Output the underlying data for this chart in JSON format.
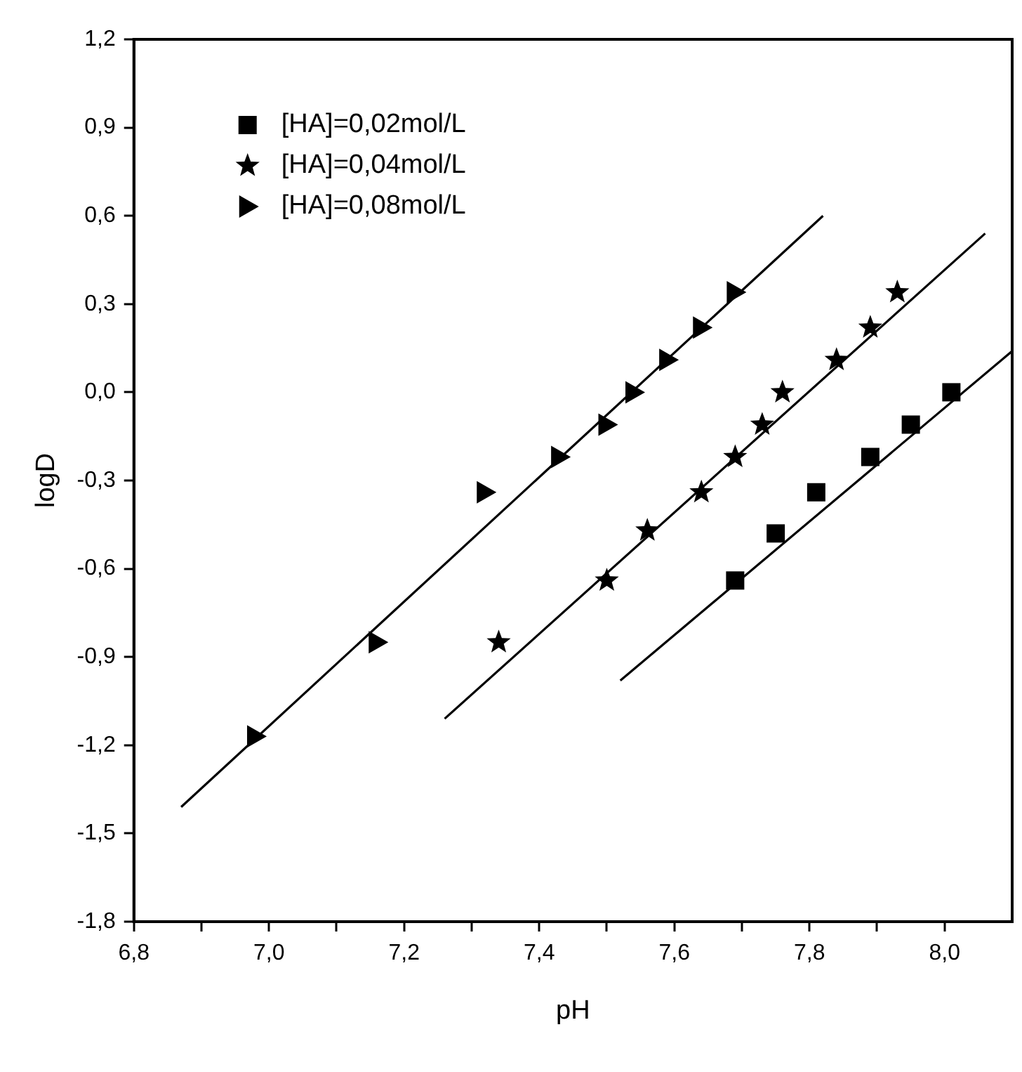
{
  "chart_data": {
    "type": "scatter",
    "xlabel": "pH",
    "ylabel": "logD",
    "xlim": [
      6.8,
      8.1
    ],
    "ylim": [
      -1.8,
      1.2
    ],
    "xticks": [
      {
        "value": 6.8,
        "label": "6,8"
      },
      {
        "value": 6.9,
        "label": null
      },
      {
        "value": 7.0,
        "label": "7,0"
      },
      {
        "value": 7.1,
        "label": null
      },
      {
        "value": 7.2,
        "label": "7,2"
      },
      {
        "value": 7.3,
        "label": null
      },
      {
        "value": 7.4,
        "label": "7,4"
      },
      {
        "value": 7.5,
        "label": null
      },
      {
        "value": 7.6,
        "label": "7,6"
      },
      {
        "value": 7.7,
        "label": null
      },
      {
        "value": 7.8,
        "label": "7,8"
      },
      {
        "value": 7.9,
        "label": null
      },
      {
        "value": 8.0,
        "label": "8,0"
      }
    ],
    "yticks": [
      {
        "value": -1.8,
        "label": "-1,8"
      },
      {
        "value": -1.5,
        "label": "-1,5"
      },
      {
        "value": -1.2,
        "label": "-1,2"
      },
      {
        "value": -0.9,
        "label": "-0,9"
      },
      {
        "value": -0.6,
        "label": "-0,6"
      },
      {
        "value": -0.3,
        "label": "-0,3"
      },
      {
        "value": 0,
        "label": "0,0"
      },
      {
        "value": 0.3,
        "label": "0,3"
      },
      {
        "value": 0.6,
        "label": "0,6"
      },
      {
        "value": 0.9,
        "label": "0,9"
      },
      {
        "value": 1.2,
        "label": "1,2"
      }
    ],
    "grid": false,
    "legend": "top left",
    "series": [
      {
        "name": "[HA]=0,02mol/L",
        "color": "#000000",
        "marker": "square",
        "x": [
          7.69,
          7.75,
          7.81,
          7.89,
          7.95,
          8.01
        ],
        "values": [
          -0.64,
          -0.48,
          -0.34,
          -0.22,
          -0.11,
          0.0
        ]
      },
      {
        "name": "[HA]=0,04mol/L",
        "color": "#000000",
        "marker": "star",
        "x": [
          7.34,
          7.5,
          7.56,
          7.64,
          7.69,
          7.73,
          7.76,
          7.84,
          7.89,
          7.93
        ],
        "values": [
          -0.85,
          -0.64,
          -0.47,
          -0.34,
          -0.22,
          -0.11,
          0.0,
          0.11,
          0.22,
          0.34
        ]
      },
      {
        "name": "[HA]=0,08mol/L",
        "color": "#000000",
        "marker": "triangle",
        "x": [
          6.98,
          7.16,
          7.32,
          7.43,
          7.5,
          7.54,
          7.59,
          7.64,
          7.69
        ],
        "values": [
          -1.17,
          -0.85,
          -0.34,
          -0.22,
          -0.11,
          0.0,
          0.11,
          0.22,
          0.34
        ]
      },
      {
        "type": "line",
        "color": "#000000",
        "marker": "none",
        "x": [
          7.52,
          8.1
        ],
        "values": [
          -0.98,
          0.14
        ]
      },
      {
        "type": "line",
        "color": "#000000",
        "marker": "none",
        "x": [
          7.26,
          8.06
        ],
        "values": [
          -1.11,
          0.54
        ]
      },
      {
        "type": "line",
        "color": "#000000",
        "marker": "none",
        "x": [
          6.87,
          7.82
        ],
        "values": [
          -1.41,
          0.6
        ]
      }
    ]
  }
}
